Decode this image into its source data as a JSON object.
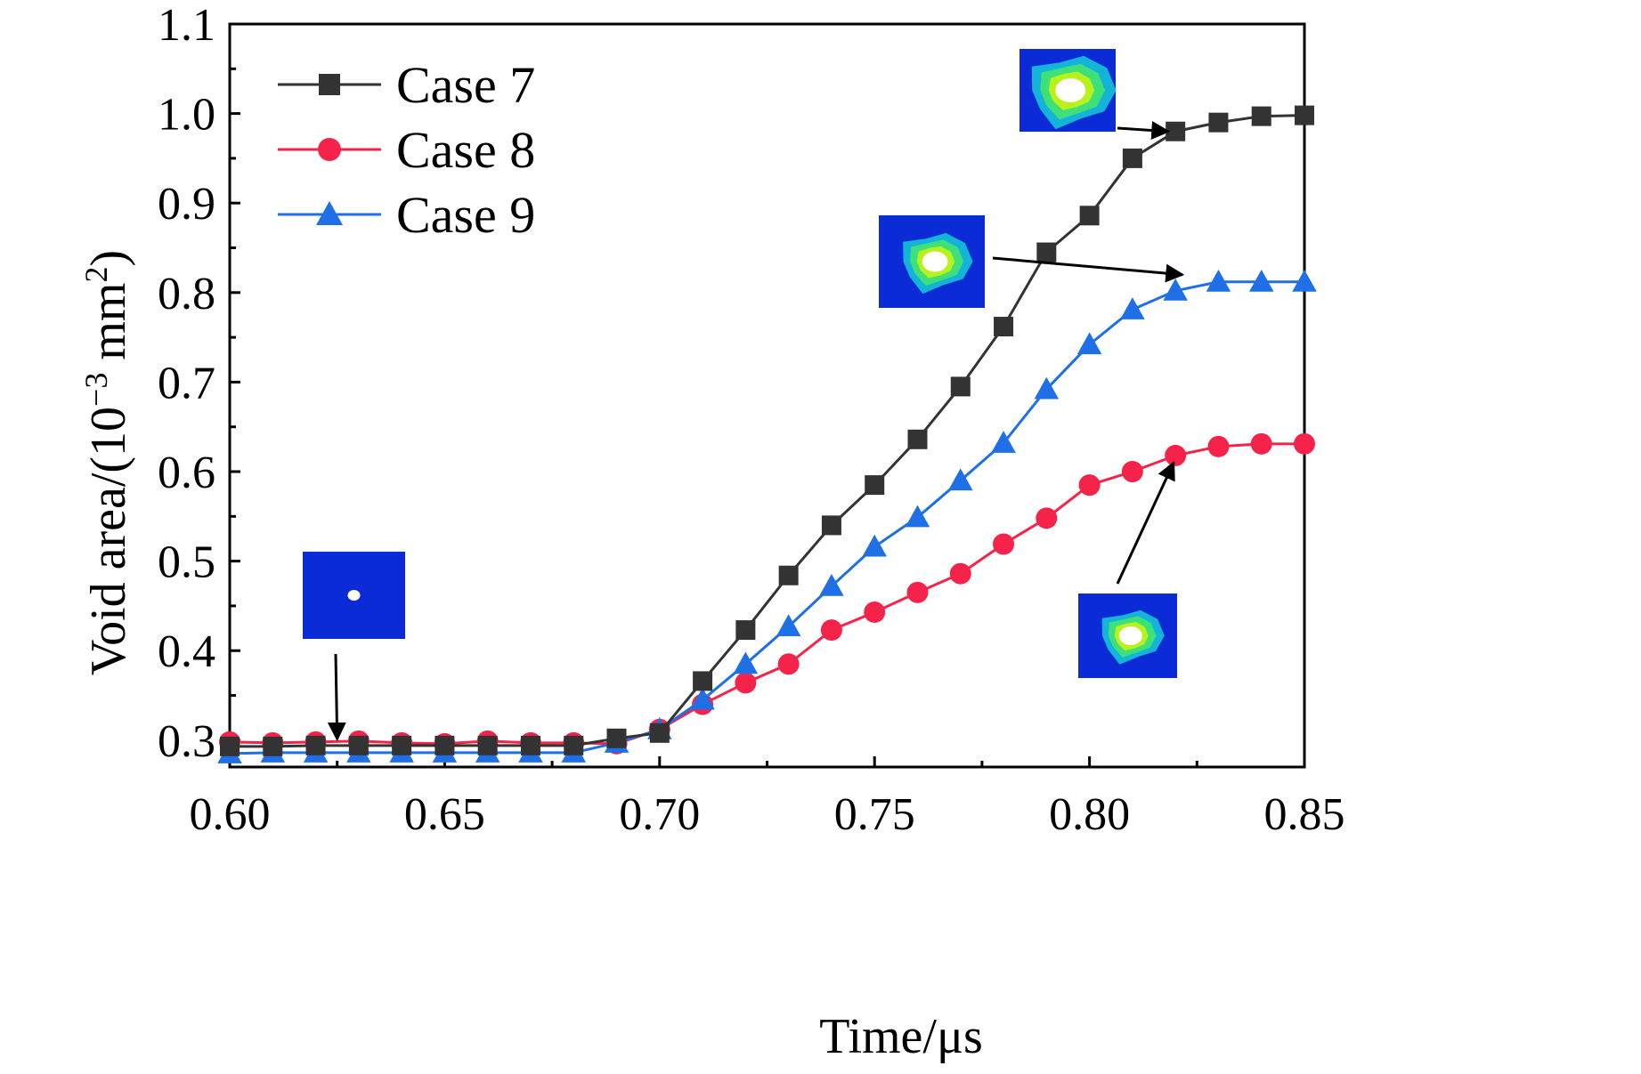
{
  "chart_data": {
    "type": "line",
    "xlabel": "Time/μs",
    "ylabel": {
      "prefix": "Void area/(10",
      "exp": "−3",
      "middle": " mm",
      "exp2": "2",
      "suffix": ")"
    },
    "xlim": [
      0.6,
      0.85
    ],
    "ylim": [
      0.27,
      1.1
    ],
    "xticks": [
      {
        "v": 0.6,
        "label": "0.60"
      },
      {
        "v": 0.65,
        "label": "0.65"
      },
      {
        "v": 0.7,
        "label": "0.70"
      },
      {
        "v": 0.75,
        "label": "0.75"
      },
      {
        "v": 0.8,
        "label": "0.80"
      },
      {
        "v": 0.85,
        "label": "0.85"
      }
    ],
    "yticks": [
      {
        "v": 0.3,
        "label": "0.3"
      },
      {
        "v": 0.4,
        "label": "0.4"
      },
      {
        "v": 0.5,
        "label": "0.5"
      },
      {
        "v": 0.6,
        "label": "0.6"
      },
      {
        "v": 0.7,
        "label": "0.7"
      },
      {
        "v": 0.8,
        "label": "0.8"
      },
      {
        "v": 0.9,
        "label": "0.9"
      },
      {
        "v": 1.0,
        "label": "1.0"
      },
      {
        "v": 1.1,
        "label": "1.1"
      }
    ],
    "grid": false,
    "legend_position": "top-left",
    "x": [
      0.6,
      0.61,
      0.62,
      0.63,
      0.64,
      0.65,
      0.66,
      0.67,
      0.68,
      0.69,
      0.7,
      0.71,
      0.72,
      0.73,
      0.74,
      0.75,
      0.76,
      0.77,
      0.78,
      0.79,
      0.8,
      0.81,
      0.82,
      0.83,
      0.84,
      0.85
    ],
    "series": [
      {
        "name": "Case 7",
        "color": "#333333",
        "marker": "square",
        "values": [
          0.293,
          0.293,
          0.294,
          0.294,
          0.294,
          0.294,
          0.294,
          0.294,
          0.294,
          0.302,
          0.308,
          0.366,
          0.423,
          0.484,
          0.54,
          0.585,
          0.636,
          0.695,
          0.762,
          0.845,
          0.886,
          0.95,
          0.98,
          0.99,
          0.997,
          0.998
        ]
      },
      {
        "name": "Case 8",
        "color": "#f5234a",
        "marker": "circle",
        "values": [
          0.298,
          0.297,
          0.298,
          0.299,
          0.297,
          0.296,
          0.299,
          0.297,
          0.297,
          0.296,
          0.312,
          0.34,
          0.364,
          0.385,
          0.423,
          0.443,
          0.465,
          0.486,
          0.519,
          0.548,
          0.585,
          0.6,
          0.618,
          0.628,
          0.631,
          0.631
        ]
      },
      {
        "name": "Case 9",
        "color": "#1f6fe6",
        "marker": "triangle",
        "values": [
          0.285,
          0.286,
          0.286,
          0.286,
          0.286,
          0.286,
          0.286,
          0.286,
          0.286,
          0.297,
          0.312,
          0.345,
          0.385,
          0.427,
          0.472,
          0.516,
          0.549,
          0.59,
          0.632,
          0.692,
          0.742,
          0.781,
          0.802,
          0.812,
          0.812,
          0.812
        ]
      }
    ],
    "insets": [
      {
        "name": "inset-initial-void",
        "at": [
          0.625,
          0.295
        ],
        "spread": "none"
      },
      {
        "name": "inset-case7-void",
        "at": [
          0.82,
          0.98
        ],
        "spread": "large"
      },
      {
        "name": "inset-case9-void",
        "at": [
          0.82,
          0.81
        ],
        "spread": "medium"
      },
      {
        "name": "inset-case8-void",
        "at": [
          0.82,
          0.62
        ],
        "spread": "small"
      }
    ],
    "inset_colors": {
      "background": "#0b2bd6",
      "ring_outer": "#14b4d8",
      "ring_mid": "#3ee07a",
      "ring_inner": "#b8f21a",
      "void": "#ffffff"
    }
  }
}
